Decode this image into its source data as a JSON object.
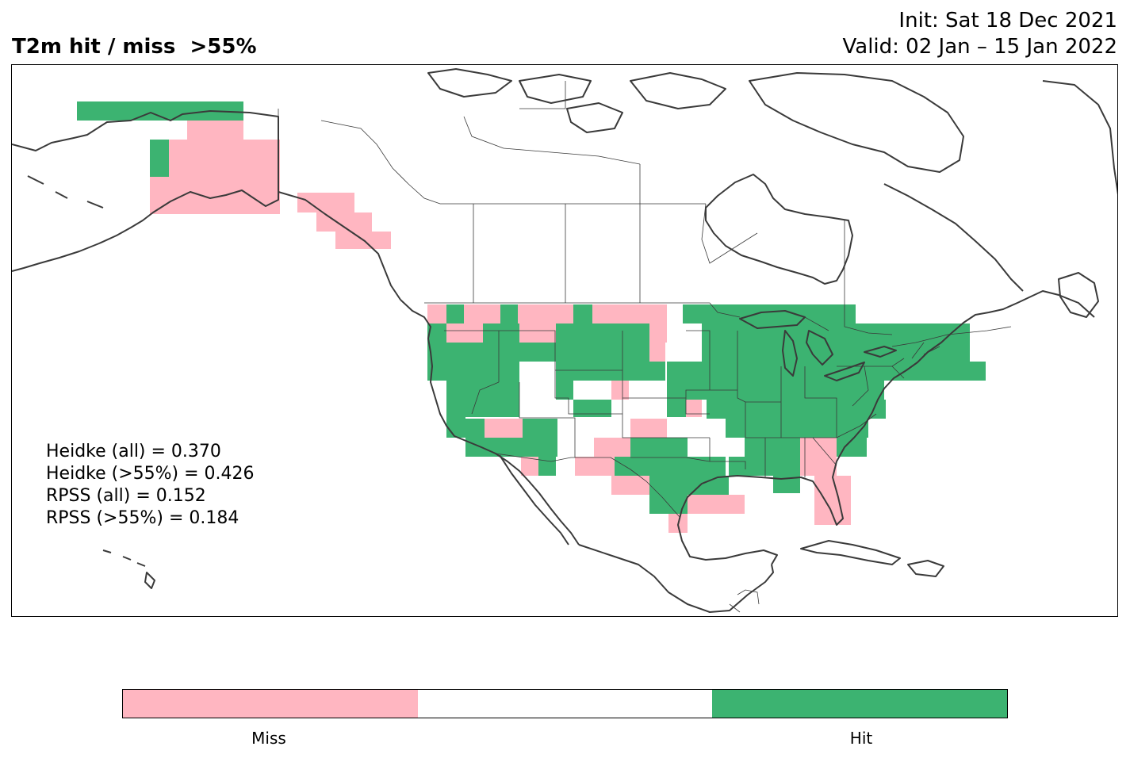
{
  "title": {
    "main": "T2m hit / miss  >55%",
    "init": "Init: Sat 18 Dec 2021",
    "valid": "Valid: 02 Jan – 15 Jan 2022"
  },
  "stats": [
    "Heidke (all) = 0.370",
    "Heidke (>55%) = 0.426",
    "RPSS (all) = 0.152",
    "RPSS (>55%) = 0.184"
  ],
  "colors": {
    "miss": "#ffb6c1",
    "neutral": "#ffffff",
    "hit": "#3cb371",
    "coast": "#3a3a3a"
  },
  "colorbar": {
    "labels": [
      "Miss",
      "Hit"
    ]
  }
}
